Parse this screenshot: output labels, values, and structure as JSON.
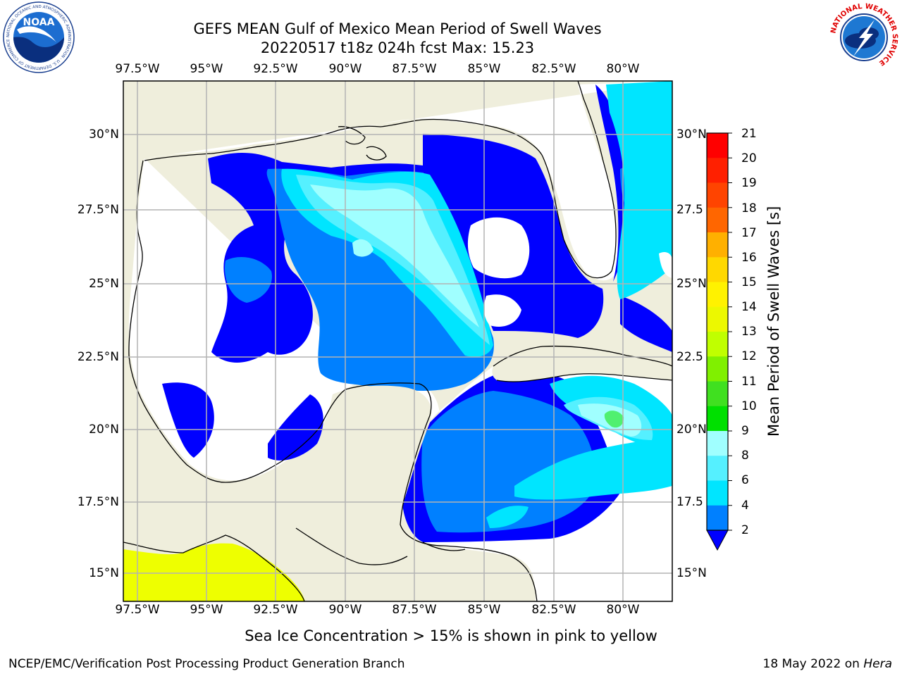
{
  "header": {
    "title_line1": "GEFS MEAN Gulf of Mexico Mean Period of Swell Waves",
    "title_line2": "20220517 t18z 024h fcst   Max: 15.23"
  },
  "logos": {
    "noaa_text": "NOAA",
    "noaa_ring_text": "NATIONAL OCEANIC AND ATMOSPHERIC ADMINISTRATION · U.S. DEPARTMENT OF COMMERCE",
    "nws_ring_text": "NATIONAL WEATHER SERVICE"
  },
  "map": {
    "lon_labels": [
      "97.5°W",
      "95°W",
      "92.5°W",
      "90°W",
      "87.5°W",
      "85°W",
      "82.5°W",
      "80°W"
    ],
    "lat_labels_left": [
      "30°N",
      "27.5°N",
      "25°N",
      "22.5°N",
      "20°N",
      "17.5°N",
      "15°N"
    ],
    "lat_labels_right": [
      "30°N",
      "27.5",
      "25°N",
      "22.5",
      "20°N",
      "17.5",
      "15°N"
    ],
    "colors": {
      "land": "#efeedc",
      "grid": "#b3b3b3",
      "band_2": "#0000ff",
      "band_2_4": "#0080ff",
      "band_4_6": "#00e5ff",
      "band_6_8": "#55f0ff",
      "band_8_9": "#a0ffff",
      "band_9_10": "#50f070",
      "sea_ice": "#eeff00"
    }
  },
  "colorbar": {
    "ticks": [
      "21",
      "20",
      "19",
      "18",
      "17",
      "16",
      "15",
      "14",
      "13",
      "12",
      "11",
      "10",
      "9",
      "8",
      "6",
      "4",
      "2"
    ],
    "label": "Mean Period of Swell Waves [s]",
    "colors": [
      "#ff0000",
      "#ff2000",
      "#ff4400",
      "#ff6600",
      "#ff8800",
      "#ffb000",
      "#ffd800",
      "#fff200",
      "#ecf800",
      "#c0ff00",
      "#80f000",
      "#40e020",
      "#00e000",
      "#50f080",
      "#a0ffff",
      "#55f0ff",
      "#00e5ff",
      "#0080ff"
    ],
    "under_color": "#0000ff"
  },
  "caption": "Sea Ice Concentration > 15% is shown in pink to yellow",
  "footer": {
    "left": "NCEP/EMC/Verification Post Processing Product Generation Branch",
    "right_prefix": "18 May 2022 on ",
    "right_host": "Hera"
  }
}
